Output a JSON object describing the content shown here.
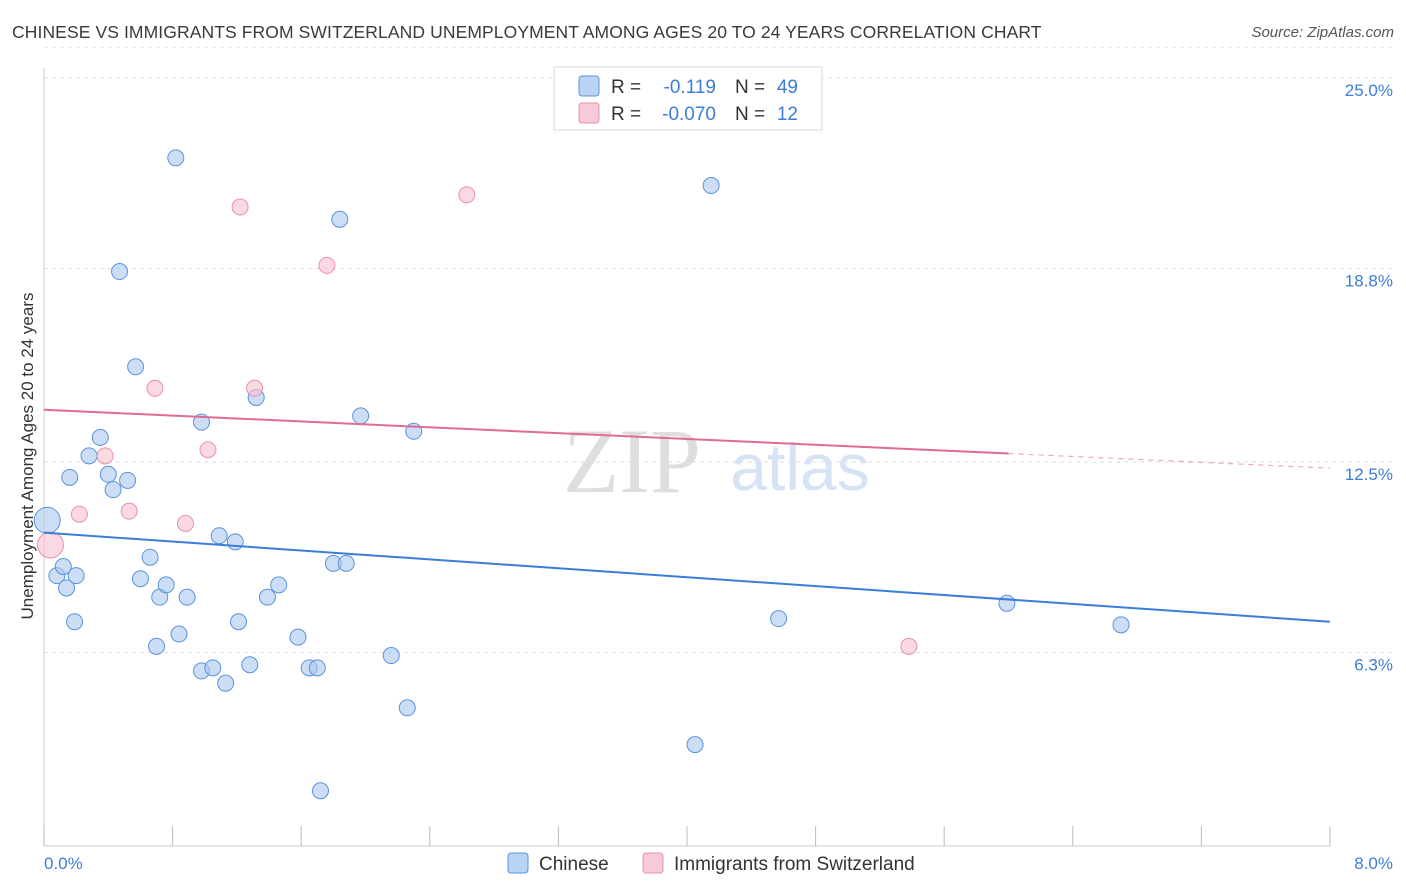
{
  "title": "CHINESE VS IMMIGRANTS FROM SWITZERLAND UNEMPLOYMENT AMONG AGES 20 TO 24 YEARS CORRELATION CHART",
  "source": "Source: ZipAtlas.com",
  "watermark": {
    "zip": "ZIP",
    "atlas": "atlas"
  },
  "legend_box": {
    "r_label": "R =",
    "n_label": "N =",
    "rows": [
      {
        "r": "-0.119",
        "n": "49"
      },
      {
        "r": "-0.070",
        "n": "12"
      }
    ]
  },
  "chart_data": {
    "type": "scatter",
    "title": "CHINESE VS IMMIGRANTS FROM SWITZERLAND UNEMPLOYMENT AMONG AGES 20 TO 24 YEARS CORRELATION CHART",
    "xlabel": "",
    "ylabel": "Unemployment Among Ages 20 to 24 years",
    "xlim": [
      0,
      8
    ],
    "ylim": [
      0,
      25.8
    ],
    "x_tick_labels": [
      "0.0%",
      "8.0%"
    ],
    "y_ticks": [
      6.3,
      12.5,
      18.8,
      25.0
    ],
    "y_tick_labels": [
      "6.3%",
      "12.5%",
      "18.8%",
      "25.0%"
    ],
    "grid": true,
    "series": [
      {
        "name": "Chinese",
        "color": "#a9c8f0",
        "stroke": "#5a93dc",
        "line_color": "#3b7dd8",
        "R": -0.119,
        "N": 49,
        "trend": {
          "x0": 0.0,
          "y0": 10.2,
          "x1": 8.0,
          "y1": 7.3,
          "dashed_from": null
        },
        "points": [
          [
            0.02,
            10.6
          ],
          [
            0.08,
            8.8
          ],
          [
            0.12,
            9.1
          ],
          [
            0.14,
            8.4
          ],
          [
            0.16,
            12.0
          ],
          [
            0.19,
            7.3
          ],
          [
            0.2,
            8.8
          ],
          [
            0.28,
            12.7
          ],
          [
            0.35,
            13.3
          ],
          [
            0.4,
            12.1
          ],
          [
            0.43,
            11.6
          ],
          [
            0.47,
            18.7
          ],
          [
            0.52,
            11.9
          ],
          [
            0.57,
            15.6
          ],
          [
            0.6,
            8.7
          ],
          [
            0.66,
            9.4
          ],
          [
            0.7,
            6.5
          ],
          [
            0.72,
            8.1
          ],
          [
            0.76,
            8.5
          ],
          [
            0.82,
            22.4
          ],
          [
            0.84,
            6.9
          ],
          [
            0.89,
            8.1
          ],
          [
            0.98,
            5.7
          ],
          [
            0.98,
            13.8
          ],
          [
            1.05,
            5.8
          ],
          [
            1.09,
            10.1
          ],
          [
            1.13,
            5.3
          ],
          [
            1.19,
            9.9
          ],
          [
            1.21,
            7.3
          ],
          [
            1.28,
            5.9
          ],
          [
            1.32,
            14.6
          ],
          [
            1.39,
            8.1
          ],
          [
            1.46,
            8.5
          ],
          [
            1.58,
            6.8
          ],
          [
            1.65,
            5.8
          ],
          [
            1.7,
            5.8
          ],
          [
            1.72,
            1.8
          ],
          [
            1.8,
            9.2
          ],
          [
            1.84,
            20.4
          ],
          [
            1.88,
            9.2
          ],
          [
            1.97,
            14.0
          ],
          [
            2.16,
            6.2
          ],
          [
            2.26,
            4.5
          ],
          [
            2.3,
            13.5
          ],
          [
            4.05,
            3.3
          ],
          [
            4.15,
            21.5
          ],
          [
            4.57,
            7.4
          ],
          [
            5.99,
            7.9
          ],
          [
            6.7,
            7.2
          ]
        ]
      },
      {
        "name": "Immigrants from Switzerland",
        "color": "#f7bfd0",
        "stroke": "#e890ab",
        "line_color": "#e06b94",
        "R": -0.07,
        "N": 12,
        "trend": {
          "x0": 0.0,
          "y0": 14.2,
          "x1": 8.0,
          "y1": 12.3,
          "dashed_from": 6.0
        },
        "points": [
          [
            0.04,
            9.8
          ],
          [
            0.22,
            10.8
          ],
          [
            0.38,
            12.7
          ],
          [
            0.53,
            10.9
          ],
          [
            0.69,
            14.9
          ],
          [
            0.88,
            10.5
          ],
          [
            1.02,
            12.9
          ],
          [
            1.22,
            20.8
          ],
          [
            1.31,
            14.9
          ],
          [
            1.76,
            18.9
          ],
          [
            2.63,
            21.2
          ],
          [
            5.38,
            6.5
          ]
        ]
      }
    ]
  }
}
